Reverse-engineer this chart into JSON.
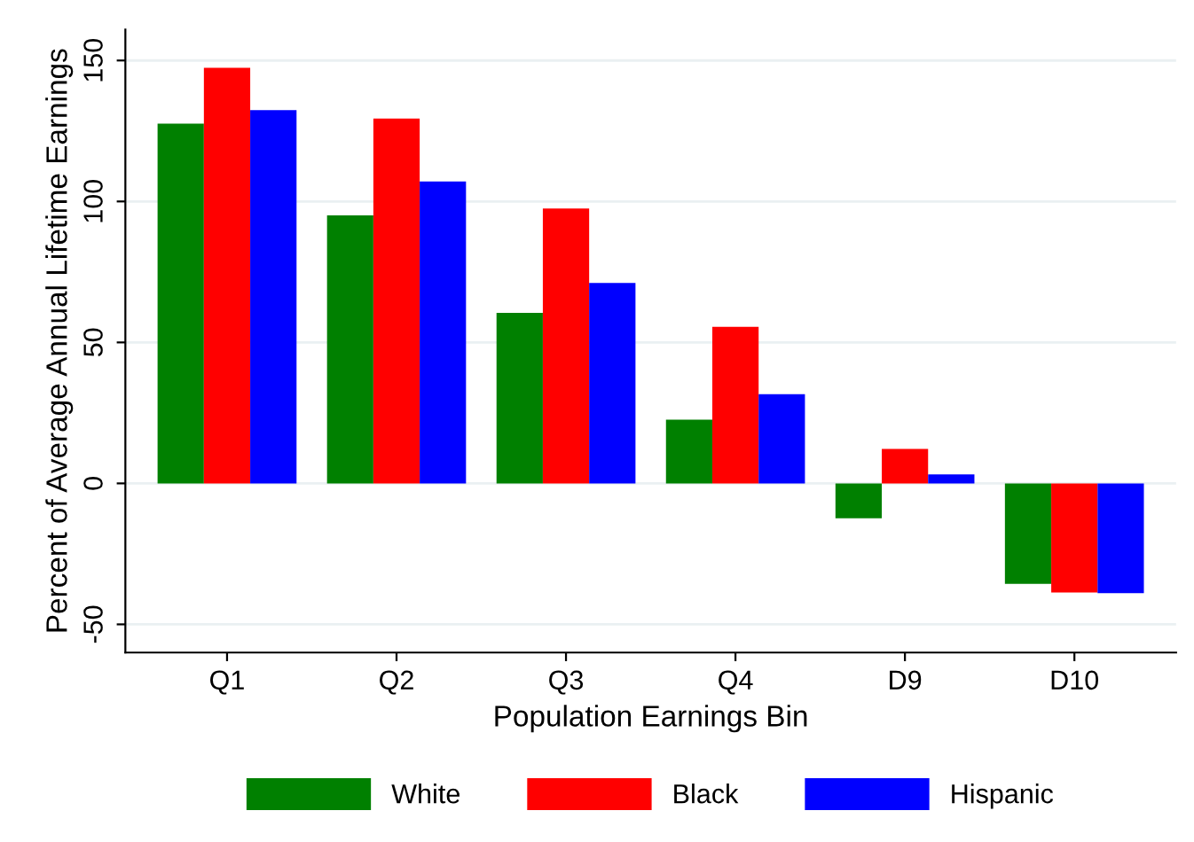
{
  "chart_data": {
    "type": "bar",
    "xlabel": "Population Earnings Bin",
    "ylabel": "Percent of Average Annual Lifetime Earnings",
    "categories": [
      "Q1",
      "Q2",
      "Q3",
      "Q4",
      "D9",
      "D10"
    ],
    "series": [
      {
        "name": "White",
        "color": "#008000",
        "values": [
          127.6,
          95.1,
          60.5,
          22.6,
          -12.4,
          -35.6
        ]
      },
      {
        "name": "Black",
        "color": "#ff0000",
        "values": [
          147.4,
          129.4,
          97.5,
          55.5,
          12.2,
          -38.7
        ]
      },
      {
        "name": "Hispanic",
        "color": "#0000ff",
        "values": [
          132.4,
          107.1,
          71.1,
          31.6,
          3.2,
          -38.9
        ]
      }
    ],
    "ylim": [
      -60,
      161
    ],
    "yticks": [
      -50,
      0,
      50,
      100,
      150
    ],
    "grid": "y",
    "legend": "bottom"
  }
}
